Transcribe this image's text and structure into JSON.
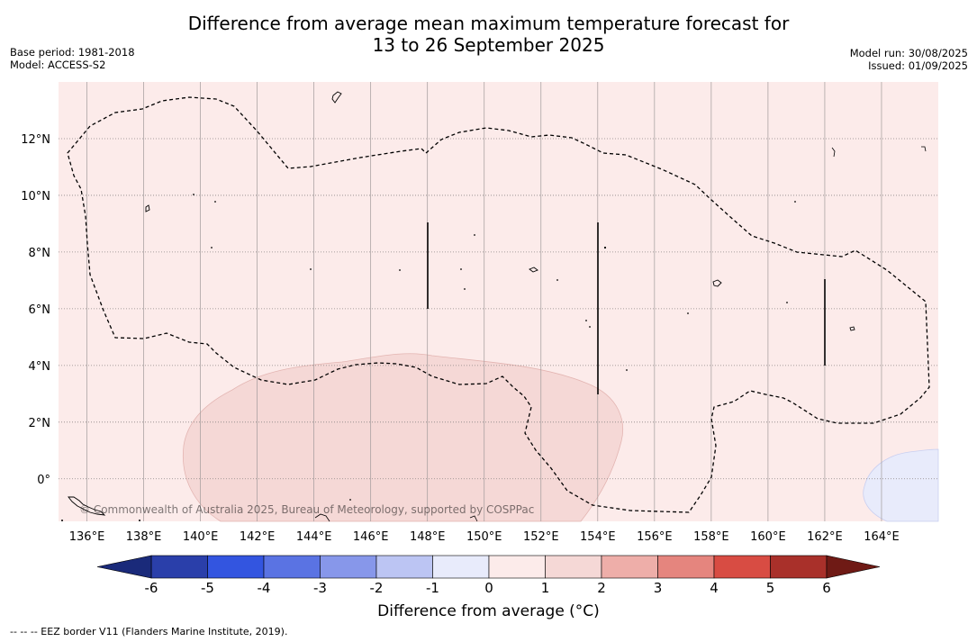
{
  "title": {
    "line1": "Difference from average mean maximum temperature forecast for",
    "line2": "13 to 26 September 2025"
  },
  "meta": {
    "base_period": "Base period: 1981-2018",
    "model": "Model: ACCESS-S2",
    "model_run": "Model run: 30/08/2025",
    "issued": "Issued: 01/09/2025"
  },
  "map": {
    "lon_range": [
      135,
      166
    ],
    "lat_range": [
      -1.5,
      14
    ],
    "lon_ticks": [
      136,
      138,
      140,
      142,
      144,
      146,
      148,
      150,
      152,
      154,
      156,
      158,
      160,
      162,
      164
    ],
    "lon_labels": [
      "136°E",
      "138°E",
      "140°E",
      "142°E",
      "144°E",
      "146°E",
      "148°E",
      "150°E",
      "152°E",
      "154°E",
      "156°E",
      "158°E",
      "160°E",
      "162°E",
      "164°E"
    ],
    "lat_ticks": [
      12,
      10,
      8,
      6,
      4,
      2,
      0
    ],
    "lat_labels": [
      "12°N",
      "10°N",
      "8°N",
      "6°N",
      "4°N",
      "2°N",
      "0°"
    ],
    "background_color": "#fcebea",
    "anomaly_1_to_2_color": "#f5d8d6",
    "anomaly_neg1_to_0_color": "#e8ebfb",
    "gridlines": true,
    "copyright": "© Commonwealth of Australia 2025, Bureau of Meteorology, supported by COSPPac"
  },
  "colorbar": {
    "ticks": [
      "-6",
      "-5",
      "-4",
      "-3",
      "-2",
      "-1",
      "0",
      "1",
      "2",
      "3",
      "4",
      "5",
      "6"
    ],
    "colors": [
      "#2a3faa",
      "#3355e0",
      "#5a73e3",
      "#8797ea",
      "#bcc5f3",
      "#e8ebfb",
      "#fcebea",
      "#f5d8d6",
      "#eeaea9",
      "#e5857e",
      "#d84c43",
      "#a9302a"
    ],
    "low_extend_color": "#1a2a7a",
    "high_extend_color": "#6f1a15",
    "label": "Difference from average (°C)"
  },
  "footnote": "-- -- -- EEZ border V11 (Flanders Marine Institute, 2019)."
}
